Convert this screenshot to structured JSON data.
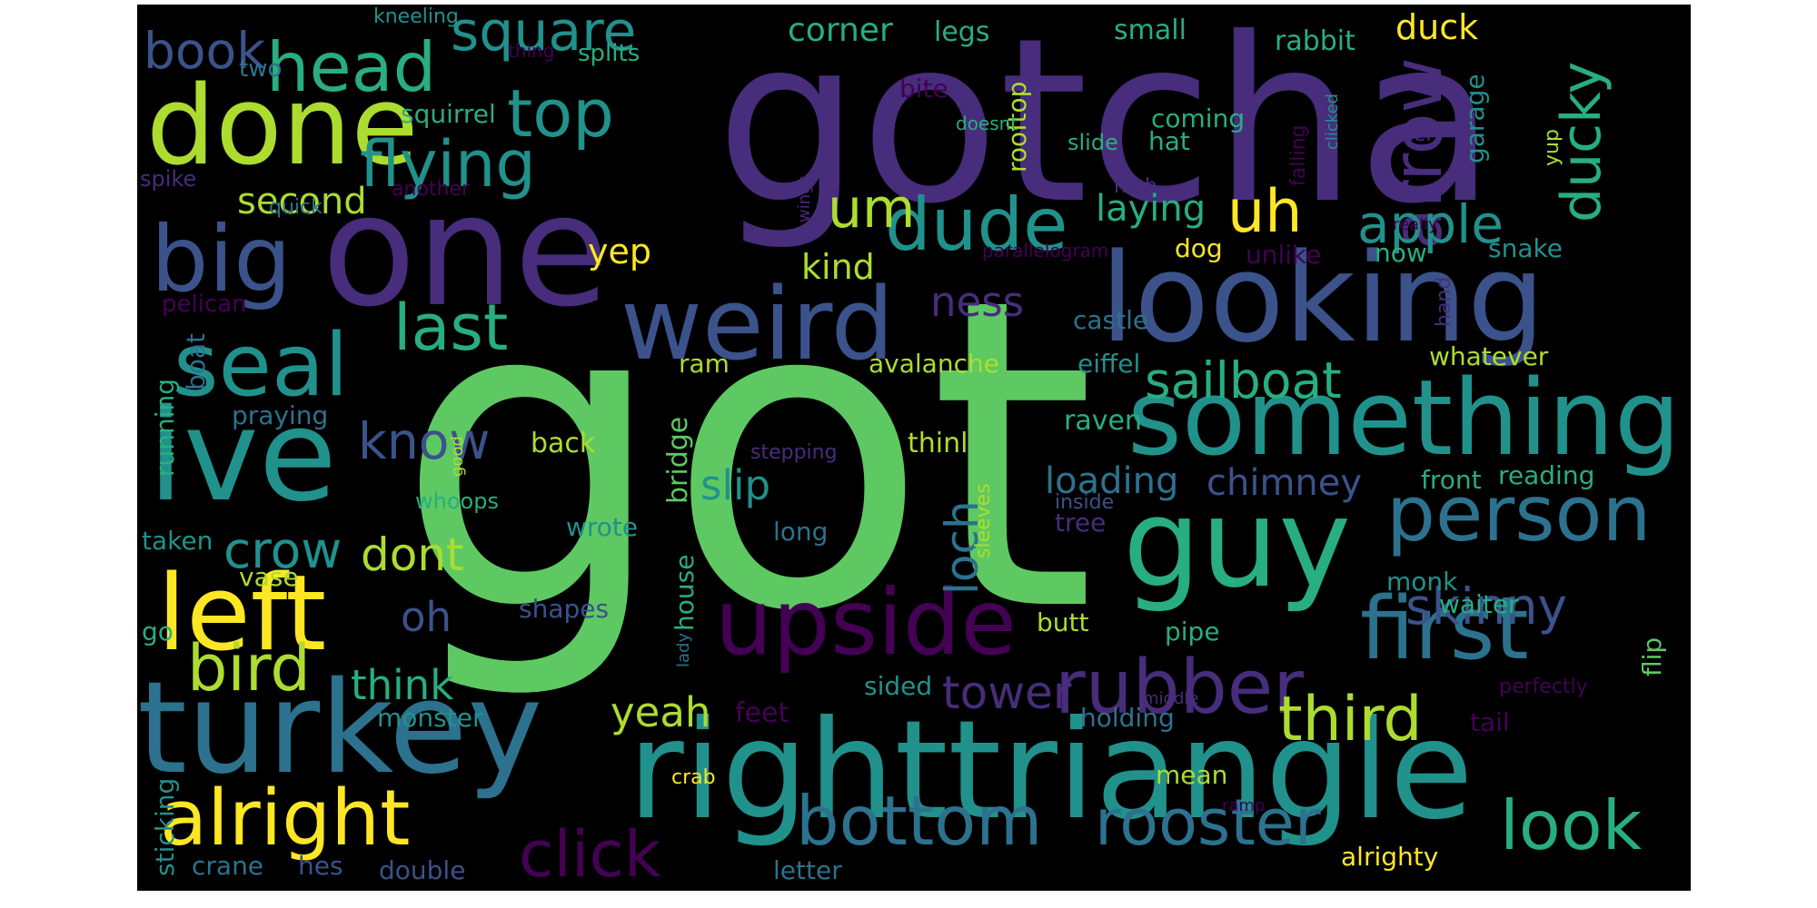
{
  "palette": {
    "background": "#000000",
    "colors": [
      "#440154",
      "#472d7b",
      "#3b528b",
      "#2c728e",
      "#21918c",
      "#28ae80",
      "#5ec962",
      "#addc30",
      "#fde725"
    ]
  },
  "words": [
    "got",
    "gotcha",
    "one",
    "righttriangle",
    "turkey",
    "guy",
    "ive",
    "looking",
    "something",
    "done",
    "weird",
    "upside",
    "first",
    "seal",
    "head",
    "big",
    "left",
    "person",
    "rubber",
    "dude",
    "arrow",
    "alright",
    "bottom",
    "rooster",
    "top",
    "look",
    "bird",
    "third",
    "flying",
    "last",
    "um",
    "ducky",
    "square",
    "uh",
    "click",
    "book",
    "apple",
    "crow",
    "skinny",
    "know",
    "sailboat",
    "loch",
    "dont",
    "oh",
    "think",
    "yeah",
    "slip",
    "tower",
    "second",
    "loading",
    "chimney",
    "ness",
    "laying",
    "kind",
    "yep",
    "corner",
    "legs",
    "duck",
    "small",
    "rabbit",
    "squirrel",
    "coming",
    "hat",
    "rooftop",
    "garage",
    "dog",
    "snake",
    "now",
    "unlike",
    "whatever",
    "castle",
    "eiffel",
    "avalanche",
    "ram",
    "praying",
    "back",
    "bridge",
    "running",
    "boat",
    "raven",
    "thinl",
    "reading",
    "front",
    "monk",
    "waiter",
    "butt",
    "pipe",
    "flip",
    "feet",
    "tail",
    "holding",
    "sided",
    "monster",
    "double",
    "crane",
    "hes",
    "letter",
    "alrighty",
    "mean",
    "crab",
    "sticking",
    "go",
    "vase",
    "taken",
    "whoops",
    "wrote",
    "shapes",
    "house",
    "long",
    "inside",
    "tree",
    "stepping",
    "sleeves",
    "lady",
    "good",
    "spike",
    "quick",
    "another",
    "pelican",
    "two",
    "kneeling",
    "thing",
    "splits",
    "bite",
    "doesnt",
    "high",
    "slide",
    "wings",
    "query",
    "falling",
    "clicked",
    "really",
    "yup",
    "hand",
    "parallelogram",
    "dress",
    "middle",
    "perfectly",
    "ramp"
  ]
}
